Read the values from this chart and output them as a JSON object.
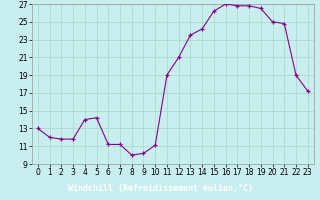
{
  "x_data": [
    0,
    1,
    2,
    3,
    4,
    5,
    6,
    7,
    8,
    9,
    10,
    11,
    12,
    13,
    14,
    15,
    16,
    17,
    18,
    19,
    20,
    21,
    22,
    23
  ],
  "y_data": [
    13.0,
    12.0,
    11.8,
    11.8,
    14.0,
    14.2,
    11.2,
    11.2,
    10.0,
    10.2,
    11.1,
    19.0,
    21.0,
    23.5,
    24.2,
    26.2,
    27.0,
    26.8,
    26.8,
    26.5,
    25.0,
    24.8,
    19.0,
    17.2
  ],
  "xlabel": "Windchill (Refroidissement éolien,°C)",
  "bg_color": "#c8eef0",
  "grid_color": "#aaddcc",
  "line_color": "#880088",
  "ylim": [
    9,
    27
  ],
  "xlim": [
    -0.5,
    23.5
  ],
  "yticks": [
    9,
    11,
    13,
    15,
    17,
    19,
    21,
    23,
    25,
    27
  ],
  "xticks": [
    0,
    1,
    2,
    3,
    4,
    5,
    6,
    7,
    8,
    9,
    10,
    11,
    12,
    13,
    14,
    15,
    16,
    17,
    18,
    19,
    20,
    21,
    22,
    23
  ],
  "xlabel_bg": "#660066",
  "xlabel_color": "#ffffff",
  "tick_fontsize": 5.5,
  "xlabel_fontsize": 6.0
}
